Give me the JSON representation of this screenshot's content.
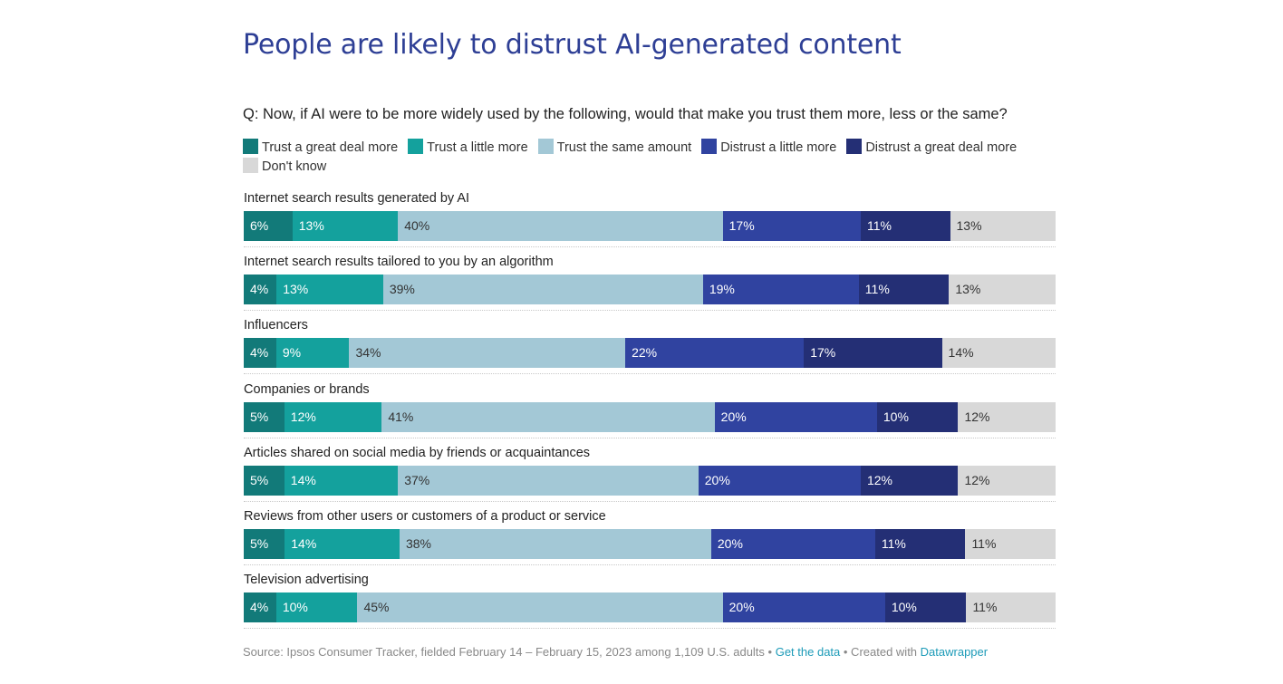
{
  "chart_data": {
    "type": "bar",
    "orientation": "horizontal",
    "stacked": true,
    "title": "People are likely to distrust AI-generated content",
    "subtitle": "Q: Now, if AI were to be more widely used by the following, would that make you trust them more, less or the same?",
    "categories": [
      "Internet search results generated by AI",
      "Internet search results tailored to you by an algorithm",
      "Influencers",
      "Companies or brands",
      "Articles shared on social media by friends or acquaintances",
      "Reviews from other users or customers of a product or service",
      "Television advertising"
    ],
    "series": [
      {
        "name": "Trust a great deal more",
        "color": "#127a79",
        "label_color": "#ffffff",
        "values": [
          6,
          4,
          4,
          5,
          5,
          5,
          4
        ]
      },
      {
        "name": "Trust a little more",
        "color": "#14a19d",
        "label_color": "#ffffff",
        "values": [
          13,
          13,
          9,
          12,
          14,
          14,
          10
        ]
      },
      {
        "name": "Trust the same amount",
        "color": "#a3c8d6",
        "label_color": "#333333",
        "values": [
          40,
          39,
          34,
          41,
          37,
          38,
          45
        ]
      },
      {
        "name": "Distrust a little more",
        "color": "#3043a0",
        "label_color": "#ffffff",
        "values": [
          17,
          19,
          22,
          20,
          20,
          20,
          20
        ]
      },
      {
        "name": "Distrust a great deal more",
        "color": "#242f75",
        "label_color": "#ffffff",
        "values": [
          11,
          11,
          17,
          10,
          12,
          11,
          10
        ]
      },
      {
        "name": "Don't know",
        "color": "#d8d8d8",
        "label_color": "#333333",
        "values": [
          13,
          13,
          14,
          12,
          12,
          11,
          11
        ]
      }
    ],
    "value_suffix": "%",
    "xlim": [
      0,
      100
    ]
  },
  "footer": {
    "source": "Source: Ipsos Consumer Tracker, fielded February 14 – February 15, 2023 among 1,109 U.S. adults",
    "sep1": " • ",
    "get_data": "Get the data",
    "sep2": " • Created with ",
    "tool": "Datawrapper"
  }
}
